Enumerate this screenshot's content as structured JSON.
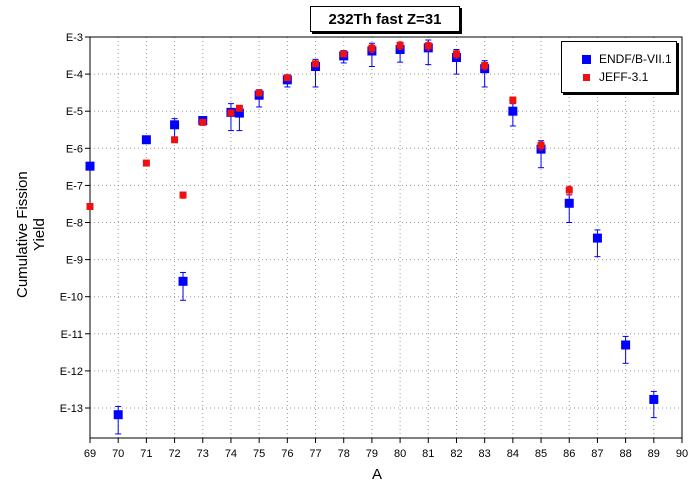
{
  "chart_data": {
    "type": "scatter",
    "title": "232Th fast Z=31",
    "xlabel": "A",
    "ylabel": "Cumulative Fission Yield",
    "xlim": [
      69,
      90
    ],
    "xticks": [
      69,
      70,
      71,
      72,
      73,
      74,
      75,
      76,
      77,
      78,
      79,
      80,
      81,
      82,
      83,
      84,
      85,
      86,
      87,
      88,
      89,
      90
    ],
    "yscale": "log",
    "ylim": [
      1e-14,
      0.001
    ],
    "ytick_labels": [
      "E-3",
      "E-4",
      "E-5",
      "E-6",
      "E-7",
      "E-8",
      "E-9",
      "E-10",
      "E-11",
      "E-12",
      "E-13"
    ],
    "grid": true,
    "legend_position": "top-right",
    "series": [
      {
        "name": "ENDF/B-VII.1",
        "color": "#0000ff",
        "marker": "square",
        "points": [
          {
            "x": 69,
            "y": 3.3e-07,
            "lo": 3.3e-07,
            "hi": 3.3e-07
          },
          {
            "x": 70,
            "y": 6.6e-14,
            "lo": 2e-14,
            "hi": 1.1e-13
          },
          {
            "x": 71,
            "y": 1.7e-06,
            "lo": 1.7e-06,
            "hi": 1.7e-06
          },
          {
            "x": 72,
            "y": 4.3e-06,
            "lo": 2e-06,
            "hi": 6.3e-06
          },
          {
            "x": 72.3,
            "y": 2.6e-10,
            "lo": 8e-11,
            "hi": 4.5e-10
          },
          {
            "x": 73,
            "y": 5.6e-06,
            "lo": 5.6e-06,
            "hi": 5.6e-06
          },
          {
            "x": 74,
            "y": 9.3e-06,
            "lo": 3e-06,
            "hi": 1.6e-05
          },
          {
            "x": 74.3,
            "y": 8.9e-06,
            "lo": 3e-06,
            "hi": 1.4e-05
          },
          {
            "x": 75,
            "y": 2.7e-05,
            "lo": 1.3e-05,
            "hi": 3.8e-05
          },
          {
            "x": 76,
            "y": 7e-05,
            "lo": 4.5e-05,
            "hi": 9.5e-05
          },
          {
            "x": 77,
            "y": 0.00016,
            "lo": 4.5e-05,
            "hi": 0.00025
          },
          {
            "x": 78,
            "y": 0.00031,
            "lo": 0.0002,
            "hi": 0.00043
          },
          {
            "x": 79,
            "y": 0.00042,
            "lo": 0.00016,
            "hi": 0.00068
          },
          {
            "x": 80,
            "y": 0.00046,
            "lo": 0.00021,
            "hi": 0.00071
          },
          {
            "x": 81,
            "y": 0.00051,
            "lo": 0.00018,
            "hi": 0.00083
          },
          {
            "x": 82,
            "y": 0.00028,
            "lo": 0.0001,
            "hi": 0.00046
          },
          {
            "x": 83,
            "y": 0.00014,
            "lo": 4.5e-05,
            "hi": 0.00023
          },
          {
            "x": 84,
            "y": 1e-05,
            "lo": 4e-06,
            "hi": 1.6e-05
          },
          {
            "x": 85,
            "y": 9.5e-07,
            "lo": 3e-07,
            "hi": 1.6e-06
          },
          {
            "x": 86,
            "y": 3.3e-08,
            "lo": 1e-08,
            "hi": 5.6e-08
          },
          {
            "x": 87,
            "y": 3.8e-09,
            "lo": 1.2e-09,
            "hi": 6.3e-09
          },
          {
            "x": 88,
            "y": 5e-12,
            "lo": 1.6e-12,
            "hi": 8.5e-12
          },
          {
            "x": 89,
            "y": 1.7e-13,
            "lo": 5.5e-14,
            "hi": 2.8e-13
          }
        ]
      },
      {
        "name": "JEFF-3.1",
        "color": "#ee1111",
        "marker": "square",
        "points": [
          {
            "x": 69,
            "y": 2.7e-08,
            "lo": 2.7e-08,
            "hi": 2.7e-08
          },
          {
            "x": 71,
            "y": 4e-07,
            "lo": 4e-07,
            "hi": 4e-07
          },
          {
            "x": 72,
            "y": 1.7e-06,
            "lo": 1.7e-06,
            "hi": 1.7e-06
          },
          {
            "x": 72.3,
            "y": 5.5e-08,
            "lo": 4.5e-08,
            "hi": 6.5e-08
          },
          {
            "x": 73,
            "y": 5e-06,
            "lo": 4.5e-06,
            "hi": 5.5e-06
          },
          {
            "x": 74,
            "y": 9e-06,
            "lo": 9e-06,
            "hi": 9e-06
          },
          {
            "x": 74.3,
            "y": 1.2e-05,
            "lo": 1.2e-05,
            "hi": 1.2e-05
          },
          {
            "x": 75,
            "y": 3.1e-05,
            "lo": 2.6e-05,
            "hi": 3.6e-05
          },
          {
            "x": 76,
            "y": 8e-05,
            "lo": 7e-05,
            "hi": 9e-05
          },
          {
            "x": 77,
            "y": 0.00019,
            "lo": 0.00016,
            "hi": 0.00022
          },
          {
            "x": 78,
            "y": 0.00035,
            "lo": 0.00029,
            "hi": 0.00041
          },
          {
            "x": 79,
            "y": 0.0005,
            "lo": 0.00038,
            "hi": 0.00062
          },
          {
            "x": 80,
            "y": 0.0006,
            "lo": 0.00046,
            "hi": 0.00074
          },
          {
            "x": 81,
            "y": 0.00058,
            "lo": 0.00044,
            "hi": 0.00072
          },
          {
            "x": 82,
            "y": 0.00035,
            "lo": 0.00027,
            "hi": 0.00043
          },
          {
            "x": 83,
            "y": 0.00017,
            "lo": 0.00013,
            "hi": 0.00021
          },
          {
            "x": 84,
            "y": 2e-05,
            "lo": 1.6e-05,
            "hi": 2.4e-05
          },
          {
            "x": 85,
            "y": 1.2e-06,
            "lo": 9e-07,
            "hi": 1.5e-06
          },
          {
            "x": 86,
            "y": 7.5e-08,
            "lo": 5.5e-08,
            "hi": 9.5e-08
          }
        ]
      }
    ]
  }
}
